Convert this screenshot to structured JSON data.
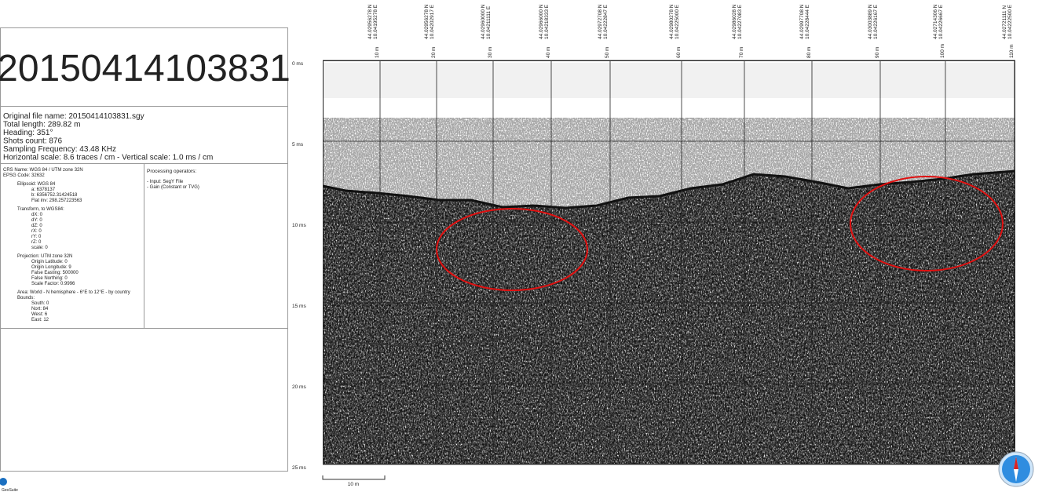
{
  "header": {
    "title": "20150414103831"
  },
  "info": {
    "lines": [
      "Original file name: 20150414103831.sgy",
      "Total length: 289.82 m",
      "Heading: 351°",
      "Shots count: 876",
      "Sampling Frequency: 43.48 KHz",
      "Horizontal scale: 8.6 traces / cm - Vertical scale: 1.0 ms / cm"
    ]
  },
  "crs": {
    "lines": [
      "CRS Name: WGS 84 / UTM zone 32N",
      "EPSG Code: 32632",
      "Ellipsoid: WGS 84",
      "a: 6378137",
      "b: 6356752.31424518",
      "Flat inv: 298.257223563",
      "Transform, to WGS84:",
      "dX: 0",
      "dY: 0",
      "dZ: 0",
      "rX: 0",
      "rY: 0",
      "rZ: 0",
      "scale: 0",
      "Projection: UTM zone 32N",
      "Origin Latitude: 0",
      "Origin Longitude: 9",
      "False Easting: 500000",
      "False Northing: 0",
      "Scale Factor: 0.9996",
      "Area: World - N hemisphere - 6°E to 12°E - by country",
      "Bounds:",
      "South: 0",
      "Nort: 84",
      "West: 6",
      "East: 12"
    ]
  },
  "processing": {
    "title": "Processing operators:",
    "lines": [
      "- Input: SegY File",
      "- Gain (Constant or TVG)"
    ]
  },
  "profile": {
    "time_labels": [
      "0 ms",
      "5 ms",
      "10 ms",
      "15 ms",
      "20 ms",
      "25 ms"
    ],
    "distance_labels": [
      "10 m",
      "20 m",
      "30 m",
      "40 m",
      "50 m",
      "60 m",
      "70 m",
      "80 m",
      "90 m",
      "100 m",
      "110 m"
    ],
    "latitudes": [
      "44.02956278 N",
      "44.02956278 N",
      "44.02960000 N",
      "44.02966000 N",
      "44.02972708 N",
      "44.02980278 N",
      "44.02986028 N",
      "44.02997708 N",
      "44.03003889 N",
      "44.02714306 N",
      "44.02721111 N"
    ],
    "longitudes": [
      "10.04195278 E",
      "10.04202917 E",
      "10.04211111 E",
      "10.04218333 E",
      "10.04222847 E",
      "10.04225000 E",
      "10.04227083 E",
      "10.04228444 E",
      "10.04226167 E",
      "10.04226667 E",
      "10.04222500 E"
    ],
    "scale_bar": "10 m"
  },
  "footer": {
    "logo": "GeoSuite"
  }
}
